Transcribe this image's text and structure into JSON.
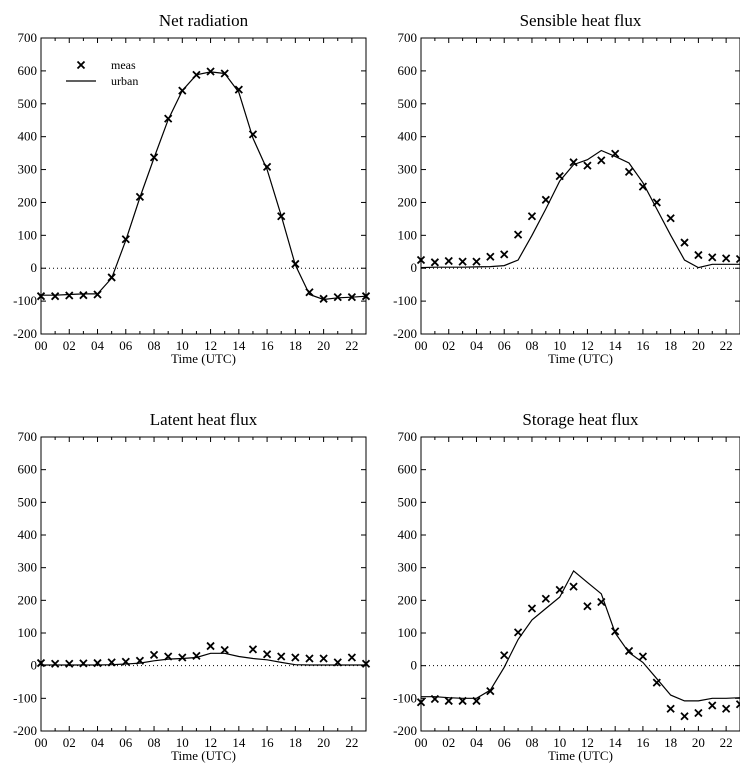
{
  "chart_data": [
    {
      "type": "line",
      "title": "Net radiation",
      "xlabel": "Time (UTC)",
      "ylabel": "",
      "ylim": [
        -200,
        700
      ],
      "yticks": [
        -200,
        -100,
        0,
        100,
        200,
        300,
        400,
        500,
        600,
        700
      ],
      "xlim": [
        0,
        23
      ],
      "xticks": [
        "00",
        "02",
        "04",
        "06",
        "08",
        "10",
        "12",
        "14",
        "16",
        "18",
        "20",
        "22"
      ],
      "zero_line": true,
      "legend": {
        "position": "top-left",
        "entries": [
          {
            "marker": "x",
            "label": "meas"
          },
          {
            "marker": "line",
            "label": "urban"
          }
        ]
      },
      "series": [
        {
          "name": "meas",
          "style": "x-marker",
          "x": [
            0,
            1,
            2,
            3,
            4,
            5,
            6,
            7,
            8,
            9,
            10,
            11,
            12,
            13,
            14,
            15,
            16,
            17,
            18,
            19,
            20,
            21,
            22,
            23
          ],
          "values": [
            -85,
            -85,
            -83,
            -82,
            -80,
            -28,
            88,
            217,
            337,
            455,
            540,
            588,
            598,
            592,
            543,
            407,
            308,
            158,
            13,
            -73,
            -93,
            -88,
            -88,
            -85
          ]
        },
        {
          "name": "urban",
          "style": "line",
          "x": [
            0,
            1,
            2,
            3,
            4,
            5,
            6,
            7,
            8,
            9,
            10,
            11,
            12,
            13,
            14,
            15,
            16,
            17,
            18,
            19,
            20,
            21,
            22,
            23
          ],
          "values": [
            -82,
            -82,
            -80,
            -78,
            -78,
            -30,
            85,
            215,
            335,
            452,
            540,
            588,
            597,
            592,
            535,
            395,
            300,
            160,
            10,
            -80,
            -95,
            -90,
            -88,
            -85
          ]
        }
      ]
    },
    {
      "type": "line",
      "title": "Sensible heat flux",
      "xlabel": "Time (UTC)",
      "ylabel": "",
      "ylim": [
        -200,
        700
      ],
      "yticks": [
        -200,
        -100,
        0,
        100,
        200,
        300,
        400,
        500,
        600,
        700
      ],
      "xlim": [
        0,
        23
      ],
      "xticks": [
        "00",
        "02",
        "04",
        "06",
        "08",
        "10",
        "12",
        "14",
        "16",
        "18",
        "20",
        "22"
      ],
      "zero_line": true,
      "series": [
        {
          "name": "meas",
          "style": "x-marker",
          "x": [
            0,
            1,
            2,
            3,
            4,
            5,
            6,
            7,
            8,
            9,
            10,
            11,
            12,
            13,
            14,
            15,
            16,
            17,
            18,
            19,
            20,
            21,
            22,
            23
          ],
          "values": [
            25,
            18,
            22,
            20,
            20,
            35,
            42,
            102,
            158,
            208,
            280,
            322,
            312,
            328,
            348,
            293,
            248,
            200,
            152,
            78,
            40,
            33,
            30,
            28
          ]
        },
        {
          "name": "urban",
          "style": "line",
          "x": [
            0,
            1,
            2,
            3,
            4,
            5,
            6,
            7,
            8,
            9,
            10,
            11,
            12,
            13,
            14,
            15,
            16,
            17,
            18,
            19,
            20,
            21,
            22,
            23
          ],
          "values": [
            2,
            3,
            3,
            3,
            4,
            5,
            8,
            25,
            100,
            180,
            265,
            315,
            330,
            358,
            340,
            320,
            260,
            180,
            100,
            25,
            2,
            12,
            12,
            12
          ]
        }
      ]
    },
    {
      "type": "line",
      "title": "Latent heat flux",
      "xlabel": "Time (UTC)",
      "ylabel": "",
      "ylim": [
        -200,
        700
      ],
      "yticks": [
        -200,
        -100,
        0,
        100,
        200,
        300,
        400,
        500,
        600,
        700
      ],
      "xlim": [
        0,
        23
      ],
      "xticks": [
        "00",
        "02",
        "04",
        "06",
        "08",
        "10",
        "12",
        "14",
        "16",
        "18",
        "20",
        "22"
      ],
      "zero_line": true,
      "series": [
        {
          "name": "meas",
          "style": "x-marker",
          "x": [
            0,
            1,
            2,
            3,
            4,
            5,
            6,
            7,
            8,
            9,
            10,
            11,
            12,
            13,
            15,
            16,
            17,
            18,
            19,
            20,
            21,
            22,
            23
          ],
          "values": [
            8,
            6,
            6,
            7,
            8,
            10,
            12,
            15,
            33,
            28,
            25,
            30,
            60,
            48,
            50,
            35,
            28,
            25,
            22,
            22,
            10,
            25,
            6
          ]
        },
        {
          "name": "urban",
          "style": "line",
          "x": [
            0,
            1,
            2,
            3,
            4,
            5,
            6,
            7,
            8,
            9,
            10,
            11,
            12,
            13,
            14,
            15,
            16,
            17,
            18,
            19,
            20,
            21,
            22,
            23
          ],
          "values": [
            2,
            2,
            2,
            2,
            2,
            3,
            5,
            8,
            15,
            20,
            22,
            25,
            38,
            38,
            28,
            22,
            18,
            10,
            3,
            2,
            2,
            2,
            2,
            2
          ]
        }
      ]
    },
    {
      "type": "line",
      "title": "Storage heat flux",
      "xlabel": "Time (UTC)",
      "ylabel": "",
      "ylim": [
        -200,
        700
      ],
      "yticks": [
        -200,
        -100,
        0,
        100,
        200,
        300,
        400,
        500,
        600,
        700
      ],
      "xlim": [
        0,
        23
      ],
      "xticks": [
        "00",
        "02",
        "04",
        "06",
        "08",
        "10",
        "12",
        "14",
        "16",
        "18",
        "20",
        "22"
      ],
      "zero_line": true,
      "series": [
        {
          "name": "meas",
          "style": "x-marker",
          "x": [
            0,
            1,
            2,
            3,
            4,
            5,
            6,
            7,
            8,
            9,
            10,
            11,
            12,
            13,
            14,
            15,
            16,
            17,
            18,
            19,
            20,
            21,
            22,
            23
          ],
          "values": [
            -112,
            -102,
            -108,
            -108,
            -108,
            -78,
            32,
            102,
            175,
            205,
            232,
            242,
            182,
            195,
            105,
            45,
            28,
            -52,
            -132,
            -155,
            -145,
            -122,
            -132,
            -118
          ]
        },
        {
          "name": "urban",
          "style": "line",
          "x": [
            0,
            1,
            2,
            3,
            4,
            5,
            6,
            7,
            8,
            9,
            10,
            11,
            12,
            13,
            14,
            15,
            16,
            17,
            18,
            19,
            20,
            21,
            22,
            23
          ],
          "values": [
            -95,
            -95,
            -98,
            -100,
            -100,
            -75,
            -5,
            80,
            140,
            175,
            210,
            290,
            255,
            220,
            100,
            40,
            10,
            -40,
            -90,
            -108,
            -108,
            -100,
            -100,
            -98
          ]
        }
      ]
    }
  ]
}
